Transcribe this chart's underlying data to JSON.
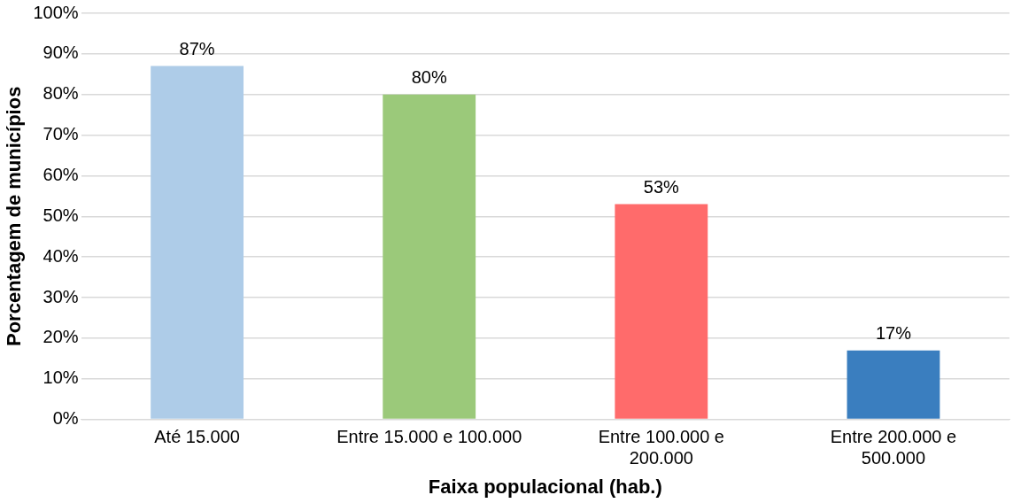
{
  "chart_data": {
    "type": "bar",
    "xlabel": "Faixa populacional (hab.)",
    "ylabel": "Porcentagem de municípios",
    "categories": [
      "Até 15.000",
      "Entre 15.000 e 100.000",
      "Entre 100.000 e 200.000",
      "Entre 200.000 e 500.000"
    ],
    "values": [
      87,
      80,
      53,
      17
    ],
    "colors": [
      "#aecce8",
      "#9bc97a",
      "#ff6b6b",
      "#3a7ebf"
    ],
    "value_labels": [
      "87%",
      "80%",
      "53%",
      "17%"
    ],
    "ylim": [
      0,
      100
    ],
    "yticks": [
      {
        "value": 0,
        "label": "0%"
      },
      {
        "value": 10,
        "label": "10%"
      },
      {
        "value": 20,
        "label": "20%"
      },
      {
        "value": 30,
        "label": "30%"
      },
      {
        "value": 40,
        "label": "40%"
      },
      {
        "value": 50,
        "label": "50%"
      },
      {
        "value": 60,
        "label": "60%"
      },
      {
        "value": 70,
        "label": "70%"
      },
      {
        "value": 80,
        "label": "80%"
      },
      {
        "value": 90,
        "label": "90%"
      },
      {
        "value": 100,
        "label": "100%"
      }
    ],
    "grid": "y",
    "legend": false
  }
}
